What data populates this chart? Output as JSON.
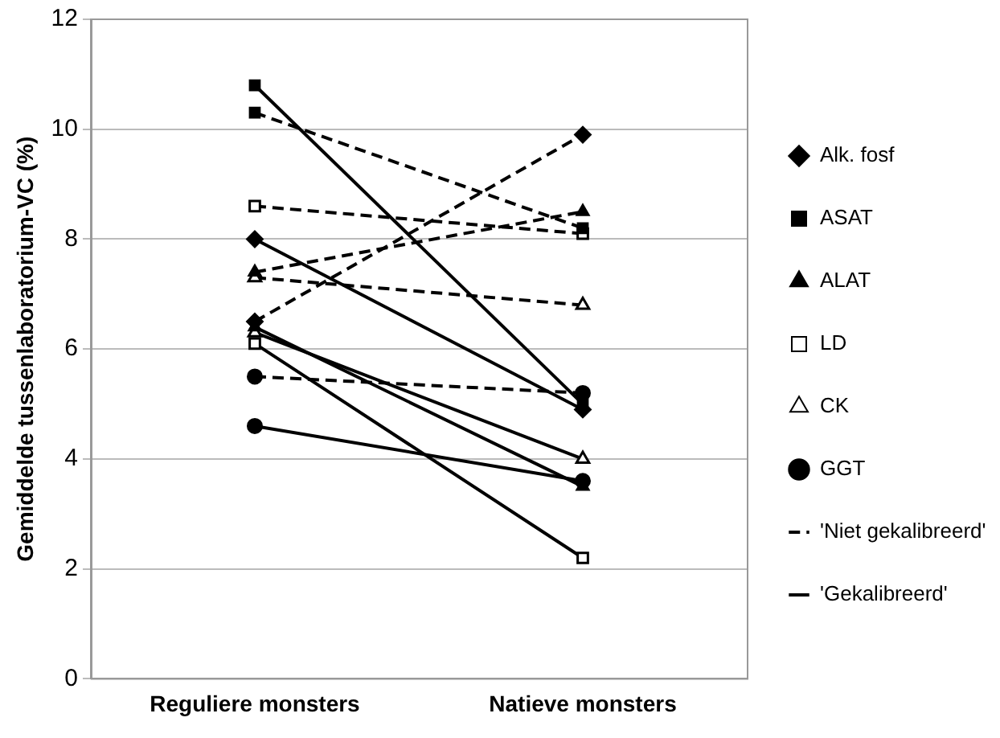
{
  "chart_data": {
    "type": "line",
    "ylabel": "Gemiddelde tussenlaboratorium-VC (%)",
    "categories": [
      "Reguliere monsters",
      "Natieve monsters"
    ],
    "ylim": [
      0,
      12
    ],
    "yticks": [
      0,
      2,
      4,
      6,
      8,
      10,
      12
    ],
    "grid": "y",
    "legend": "right",
    "series": [
      {
        "name": "Alk. fosf",
        "color": "#000000",
        "marker": "diamond",
        "line_style": "dashed",
        "values": [
          6.5,
          9.9
        ]
      },
      {
        "name": "ASAT",
        "color": "#000000",
        "marker": "square",
        "line_style": "dashed",
        "values": [
          10.3,
          8.2
        ]
      },
      {
        "name": "ALAT",
        "color": "#000000",
        "marker": "triangle",
        "line_style": "dashed",
        "values": [
          7.4,
          8.5
        ]
      },
      {
        "name": "LD",
        "color": "#000000",
        "marker": "square-open",
        "line_style": "dashed",
        "values": [
          8.6,
          8.1
        ]
      },
      {
        "name": "CK",
        "color": "#000000",
        "marker": "triangle-open",
        "line_style": "dashed",
        "values": [
          7.3,
          6.8
        ]
      },
      {
        "name": "GGT",
        "color": "#000000",
        "marker": "circle",
        "line_style": "dashed",
        "values": [
          5.5,
          5.2
        ]
      },
      {
        "color": "#000000",
        "marker": "diamond",
        "line_style": "solid",
        "values": [
          8.0,
          4.9
        ]
      },
      {
        "color": "#000000",
        "marker": "square",
        "line_style": "solid",
        "values": [
          10.8,
          5.0
        ]
      },
      {
        "color": "#000000",
        "marker": "triangle",
        "line_style": "solid",
        "values": [
          6.4,
          3.5
        ]
      },
      {
        "color": "#000000",
        "marker": "square-open",
        "line_style": "solid",
        "values": [
          6.1,
          2.2
        ]
      },
      {
        "color": "#000000",
        "marker": "triangle-open",
        "line_style": "solid",
        "values": [
          6.3,
          4.0
        ]
      },
      {
        "color": "#000000",
        "marker": "circle",
        "line_style": "solid",
        "values": [
          4.6,
          3.6
        ]
      },
      {
        "name": "'Niet gekalibreerd'",
        "color": "#000000",
        "marker": "none",
        "line_style": "dashed",
        "values": [
          null,
          null
        ]
      },
      {
        "name": "'Gekalibreerd'",
        "color": "#000000",
        "marker": "none",
        "line_style": "solid",
        "values": [
          null,
          null
        ]
      }
    ]
  }
}
